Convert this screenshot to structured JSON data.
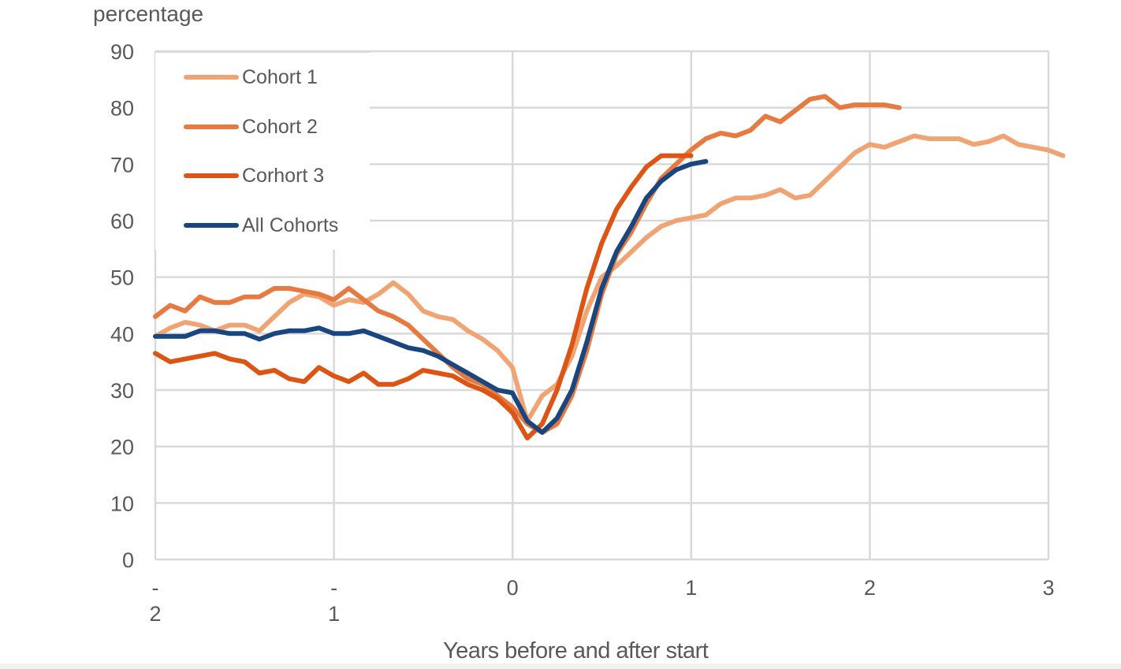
{
  "chart_data": {
    "type": "line",
    "title": "",
    "ylabel": "percentage",
    "xlabel": "Years before and after start",
    "ylim": [
      0,
      90
    ],
    "xlim": [
      -2,
      3
    ],
    "yticks": [
      0,
      10,
      20,
      30,
      40,
      50,
      60,
      70,
      80,
      90
    ],
    "xticks": [
      {
        "value": -2,
        "label": "-\n2"
      },
      {
        "value": -1,
        "label": "-\n1"
      },
      {
        "value": 0,
        "label": "0"
      },
      {
        "value": 1,
        "label": "1"
      },
      {
        "value": 2,
        "label": "2"
      },
      {
        "value": 3,
        "label": "3"
      }
    ],
    "grid": true,
    "legend_position": "upper left (inside plot)",
    "x_step": 0.0833,
    "series": [
      {
        "name": "Cohort 1",
        "color": "#F0A474",
        "x_start": -2,
        "values": [
          39.5,
          41,
          42,
          41.5,
          40.5,
          41.5,
          41.5,
          40.5,
          43,
          45.5,
          47,
          46.5,
          45,
          46,
          45.5,
          47,
          49,
          47,
          44,
          43,
          42.5,
          40.5,
          39,
          37,
          34,
          24.5,
          29,
          31,
          36,
          44,
          50,
          52,
          54.5,
          57,
          59,
          60,
          60.5,
          61,
          63,
          64,
          64,
          64.5,
          65.5,
          64,
          64.5,
          67,
          69.5,
          72,
          73.5,
          73,
          74,
          75,
          74.5,
          74.5,
          74.5,
          73.5,
          74,
          75,
          73.5,
          73,
          72.5,
          71.5
        ]
      },
      {
        "name": "Cohort 2",
        "color": "#E67A40",
        "x_start": -2,
        "values": [
          43,
          45,
          44,
          46.5,
          45.5,
          45.5,
          46.5,
          46.5,
          48,
          48,
          47.5,
          47,
          46,
          48,
          46,
          44,
          43,
          41.5,
          39,
          36.5,
          34,
          32,
          31,
          29,
          27,
          24,
          22.5,
          24,
          29,
          37,
          47,
          54,
          58,
          63,
          67.5,
          70,
          72.5,
          74.5,
          75.5,
          75,
          76,
          78.5,
          77.5,
          79.5,
          81.5,
          82,
          80,
          80.5,
          80.5,
          80.5,
          80
        ]
      },
      {
        "name": "Corhort 3",
        "color": "#DC5514",
        "x_start": -2,
        "values": [
          36.5,
          35,
          35.5,
          36,
          36.5,
          35.5,
          35,
          33,
          33.5,
          32,
          31.5,
          34,
          32.5,
          31.5,
          33,
          31,
          31,
          32,
          33.5,
          33,
          32.5,
          31,
          30,
          28.5,
          26,
          21.5,
          24,
          30,
          38,
          48,
          56,
          62,
          66,
          69.5,
          71.5,
          71.5,
          71.5
        ]
      },
      {
        "name": "All Cohorts",
        "color": "#1A4680",
        "x_start": -2,
        "values": [
          39.5,
          39.5,
          39.5,
          40.5,
          40.5,
          40,
          40,
          39,
          40,
          40.5,
          40.5,
          41,
          40,
          40,
          40.5,
          39.5,
          38.5,
          37.5,
          37,
          36,
          34.5,
          33,
          31.5,
          30,
          29.5,
          24.5,
          22.5,
          25,
          30,
          38.5,
          48,
          54.5,
          59,
          64,
          67,
          69,
          70,
          70.5
        ]
      }
    ]
  },
  "labels": {
    "y_axis_title": "percentage",
    "x_axis_title": "Years before and after start",
    "legend": [
      "Cohort 1",
      "Cohort 2",
      "Corhort 3",
      "All Cohorts"
    ]
  }
}
